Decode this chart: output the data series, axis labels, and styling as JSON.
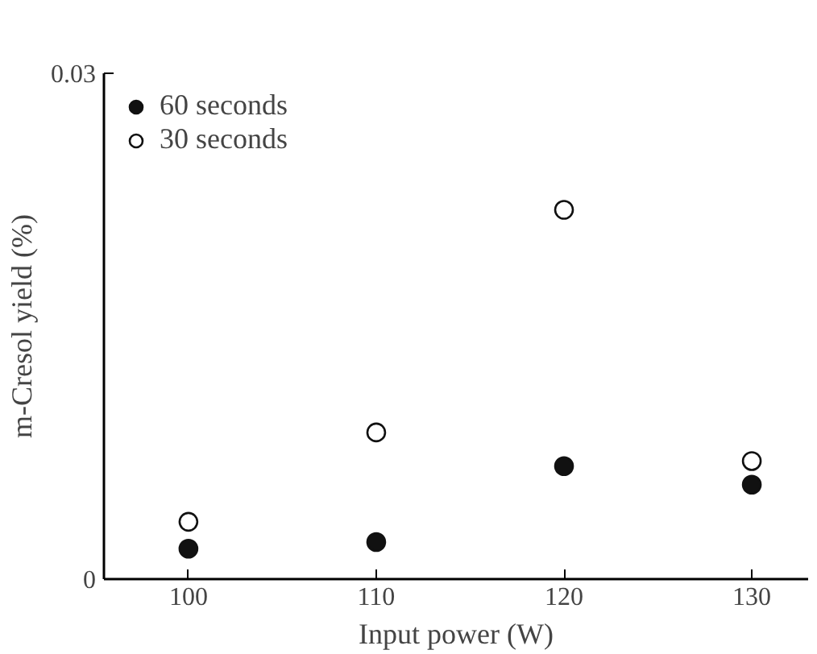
{
  "chart_data": {
    "type": "scatter",
    "xlabel": "Input power (W)",
    "ylabel": "m-Cresol yield (%)",
    "x": [
      100,
      110,
      120,
      130
    ],
    "series": [
      {
        "name": "60 seconds",
        "color": "#111111",
        "values": [
          0.0018,
          0.0022,
          0.0067,
          0.0056
        ]
      },
      {
        "name": "30 seconds",
        "color": "#111111",
        "values": [
          0.0034,
          0.0087,
          0.0219,
          0.007
        ]
      }
    ],
    "xlim": [
      95.5,
      133
    ],
    "xticks": [
      100,
      110,
      120,
      130
    ],
    "ylim": [
      0,
      0.03
    ],
    "yticks": [
      0,
      0.03
    ],
    "marker": "circle",
    "legend": "top left",
    "grid": false
  }
}
